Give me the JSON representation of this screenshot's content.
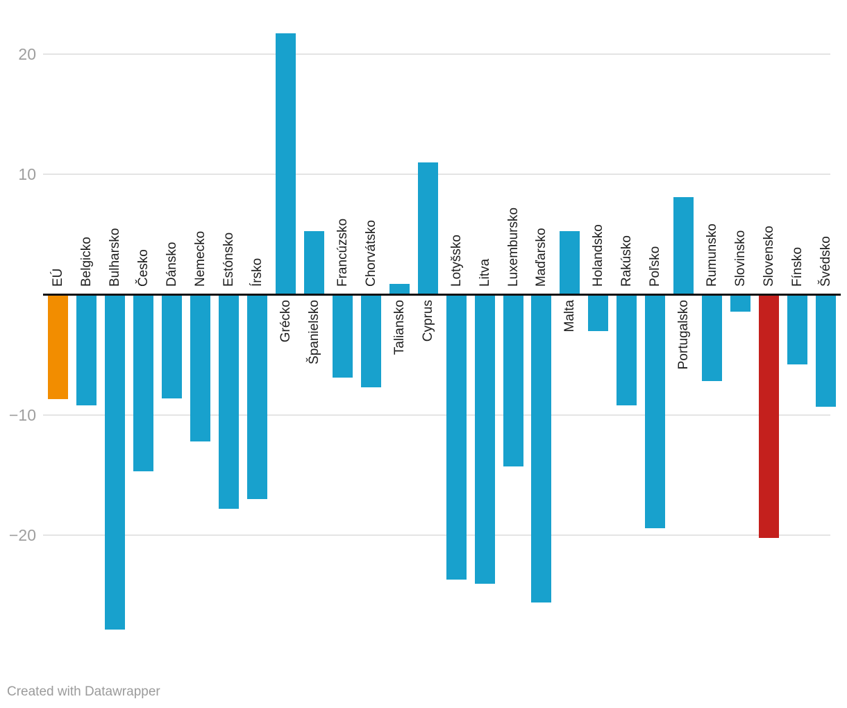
{
  "chart_data": {
    "type": "bar",
    "title": "",
    "xlabel": "",
    "ylabel": "",
    "categories": [
      "EÚ",
      "Belgicko",
      "Bulharsko",
      "Česko",
      "Dánsko",
      "Nemecko",
      "Estónsko",
      "Írsko",
      "Grécko",
      "Španielsko",
      "Francúzsko",
      "Chorvátsko",
      "Taliansko",
      "Cyprus",
      "Lotyšsko",
      "Litva",
      "Luxembursko",
      "Maďarsko",
      "Malta",
      "Holandsko",
      "Rakúsko",
      "Poľsko",
      "Portugalsko",
      "Rumunsko",
      "Slovinsko",
      "Slovensko",
      "Fínsko",
      "Švédsko"
    ],
    "values": [
      -8.7,
      -9.2,
      -27.8,
      -14.7,
      -8.6,
      -12.2,
      -17.8,
      -17.0,
      21.7,
      5.3,
      -6.9,
      -7.7,
      0.9,
      11.0,
      -23.7,
      -24.0,
      -14.3,
      -25.6,
      5.3,
      -3.0,
      -9.2,
      -19.4,
      8.1,
      -7.2,
      -1.4,
      -20.2,
      -5.8,
      -9.3
    ],
    "yticks": [
      20,
      10,
      -10,
      -20
    ],
    "ylim": [
      -29,
      23
    ],
    "grid": true,
    "legend_position": "none",
    "colors": {
      "default": "#18a1cd",
      "EÚ": "#f28d00",
      "Slovensko": "#c4201d"
    },
    "label_rotation": "vertical-bottom-to-top",
    "label_side_rule": "labels on opposite side of bar relative to zero axis"
  },
  "footer": {
    "credit": "Created with Datawrapper"
  }
}
